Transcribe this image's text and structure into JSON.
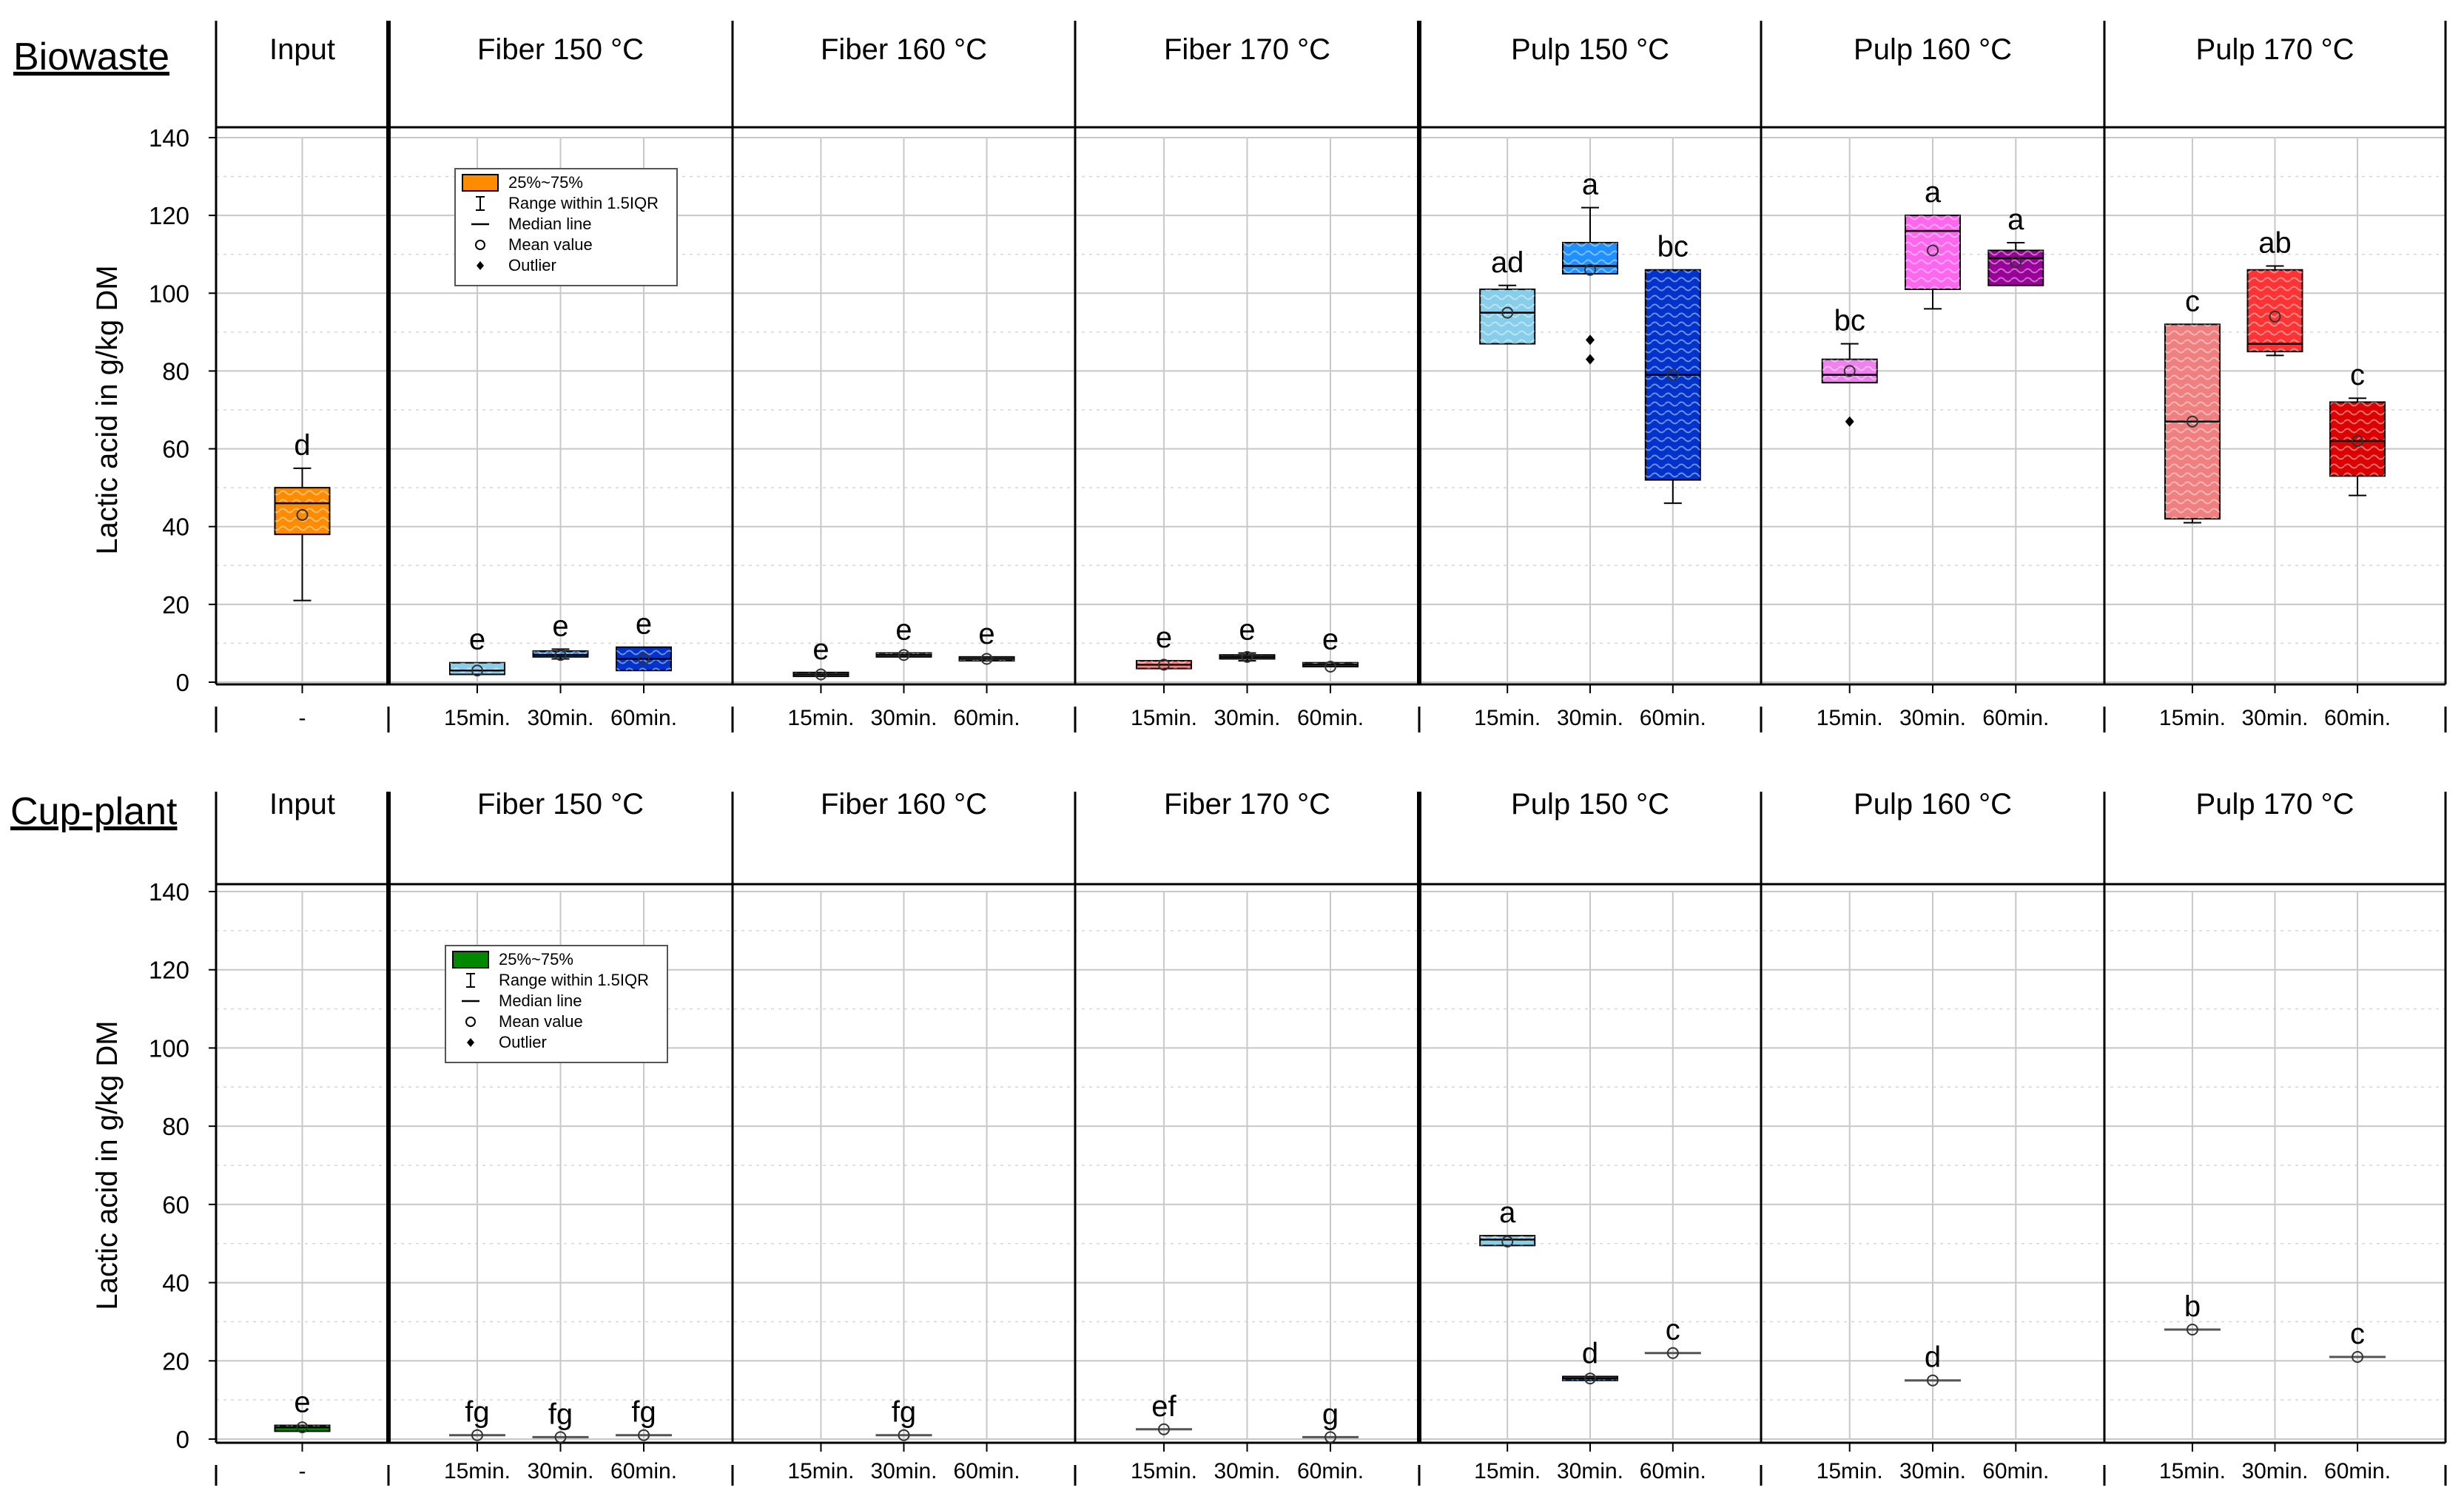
{
  "chart_data": [
    {
      "type": "boxplot",
      "title": "Biowaste",
      "ylabel": "Lactic acid in g/kg DM",
      "ylim": [
        0,
        140
      ],
      "yticks": [
        0,
        20,
        40,
        60,
        80,
        100,
        120,
        140
      ],
      "grid": true,
      "legend": {
        "placement": "inside top-left of Fiber 150 °C panel",
        "entries": [
          "25%~75%",
          "Range within 1.5IQR",
          "Median line",
          "Mean value",
          "Outlier"
        ]
      },
      "groups": [
        {
          "name": "Input",
          "categories": [
            "-"
          ],
          "boxes": [
            {
              "cat": "-",
              "q1": 38,
              "median": 46,
              "q3": 50,
              "low": 21,
              "high": 55,
              "mean": 43,
              "outliers": [],
              "letter": "d",
              "color": "#ff8c00"
            }
          ]
        },
        {
          "name": "Fiber 150 °C",
          "categories": [
            "15min.",
            "30min.",
            "60min."
          ],
          "boxes": [
            {
              "cat": "15min.",
              "q1": 2,
              "median": 3,
              "q3": 5,
              "low": 2,
              "high": 5,
              "mean": 3,
              "outliers": [],
              "letter": "e",
              "color": "#87ceeb"
            },
            {
              "cat": "30min.",
              "q1": 6.5,
              "median": 7,
              "q3": 8,
              "low": 6,
              "high": 8.5,
              "mean": 7,
              "outliers": [],
              "letter": "e",
              "color": "#1e90ff"
            },
            {
              "cat": "60min.",
              "q1": 3,
              "median": 6,
              "q3": 9,
              "low": 3,
              "high": 9,
              "mean": 6,
              "outliers": [],
              "letter": "e",
              "color": "#0033cc"
            }
          ]
        },
        {
          "name": "Fiber 160 °C",
          "categories": [
            "15min.",
            "30min.",
            "60min."
          ],
          "boxes": [
            {
              "cat": "15min.",
              "q1": 1.5,
              "median": 2,
              "q3": 2.5,
              "low": 1.5,
              "high": 2.5,
              "mean": 2,
              "outliers": [],
              "letter": "e",
              "color": "#aaaaaa"
            },
            {
              "cat": "30min.",
              "q1": 6.5,
              "median": 7,
              "q3": 7.5,
              "low": 6.5,
              "high": 7.5,
              "mean": 7,
              "outliers": [],
              "letter": "e",
              "color": "#aaaaaa"
            },
            {
              "cat": "60min.",
              "q1": 5.5,
              "median": 6,
              "q3": 6.5,
              "low": 5.5,
              "high": 6.5,
              "mean": 6,
              "outliers": [],
              "letter": "e",
              "color": "#aaaaaa"
            }
          ]
        },
        {
          "name": "Fiber 170 °C",
          "categories": [
            "15min.",
            "30min.",
            "60min."
          ],
          "boxes": [
            {
              "cat": "15min.",
              "q1": 3.5,
              "median": 4.5,
              "q3": 5.5,
              "low": 3.5,
              "high": 5.5,
              "mean": 4.5,
              "outliers": [],
              "letter": "e",
              "color": "#ff8080"
            },
            {
              "cat": "30min.",
              "q1": 6,
              "median": 6.5,
              "q3": 7,
              "low": 5.5,
              "high": 7.5,
              "mean": 6.5,
              "outliers": [],
              "letter": "e",
              "color": "#888888"
            },
            {
              "cat": "60min.",
              "q1": 4,
              "median": 4.5,
              "q3": 5,
              "low": 4,
              "high": 5,
              "mean": 4,
              "outliers": [],
              "letter": "e",
              "color": "#888888"
            }
          ]
        },
        {
          "name": "Pulp 150 °C",
          "categories": [
            "15min.",
            "30min.",
            "60min."
          ],
          "boxes": [
            {
              "cat": "15min.",
              "q1": 87,
              "median": 95,
              "q3": 101,
              "low": 87,
              "high": 102,
              "mean": 95,
              "outliers": [],
              "letter": "ad",
              "color": "#87ceeb"
            },
            {
              "cat": "30min.",
              "q1": 105,
              "median": 107,
              "q3": 113,
              "low": 105,
              "high": 122,
              "mean": 106,
              "outliers": [
                88,
                83
              ],
              "letter": "a",
              "color": "#1e90ff"
            },
            {
              "cat": "60min.",
              "q1": 52,
              "median": 79,
              "q3": 106,
              "low": 46,
              "high": 106,
              "mean": 79,
              "outliers": [],
              "letter": "bc",
              "color": "#0033cc"
            }
          ]
        },
        {
          "name": "Pulp 160 °C",
          "categories": [
            "15min.",
            "30min.",
            "60min."
          ],
          "boxes": [
            {
              "cat": "15min.",
              "q1": 77,
              "median": 79,
              "q3": 83,
              "low": 77,
              "high": 87,
              "mean": 80,
              "outliers": [
                67
              ],
              "letter": "bc",
              "color": "#ee82ee"
            },
            {
              "cat": "30min.",
              "q1": 101,
              "median": 116,
              "q3": 120,
              "low": 96,
              "high": 120,
              "mean": 111,
              "outliers": [],
              "letter": "a",
              "color": "#ff66ee"
            },
            {
              "cat": "60min.",
              "q1": 102,
              "median": 109,
              "q3": 111,
              "low": 102,
              "high": 113,
              "mean": 108,
              "outliers": [],
              "letter": "a",
              "color": "#990099"
            }
          ]
        },
        {
          "name": "Pulp 170 °C",
          "categories": [
            "15min.",
            "30min.",
            "60min."
          ],
          "boxes": [
            {
              "cat": "15min.",
              "q1": 42,
              "median": 67,
              "q3": 92,
              "low": 41,
              "high": 92,
              "mean": 67,
              "outliers": [],
              "letter": "c",
              "color": "#f08080"
            },
            {
              "cat": "30min.",
              "q1": 85,
              "median": 87,
              "q3": 106,
              "low": 84,
              "high": 107,
              "mean": 94,
              "outliers": [],
              "letter": "ab",
              "color": "#ff3333"
            },
            {
              "cat": "60min.",
              "q1": 53,
              "median": 62,
              "q3": 72,
              "low": 48,
              "high": 73,
              "mean": 62,
              "outliers": [],
              "letter": "c",
              "color": "#dd0000"
            }
          ]
        }
      ]
    },
    {
      "type": "boxplot",
      "title": "Cup-plant",
      "ylabel": "Lactic acid in g/kg DM",
      "ylim": [
        0,
        140
      ],
      "yticks": [
        0,
        20,
        40,
        60,
        80,
        100,
        120,
        140
      ],
      "grid": true,
      "legend": {
        "placement": "inside top-left of Fiber 150 °C panel",
        "entries": [
          "25%~75%",
          "Range within 1.5IQR",
          "Median line",
          "Mean value",
          "Outlier"
        ]
      },
      "groups": [
        {
          "name": "Input",
          "categories": [
            "-"
          ],
          "boxes": [
            {
              "cat": "-",
              "q1": 2,
              "median": 3,
              "q3": 3.5,
              "low": 2,
              "high": 3.5,
              "mean": 3,
              "outliers": [],
              "letter": "e",
              "color": "#008800"
            }
          ]
        },
        {
          "name": "Fiber 150 °C",
          "categories": [
            "15min.",
            "30min.",
            "60min."
          ],
          "boxes": [
            {
              "cat": "15min.",
              "q1": 1,
              "median": 1,
              "q3": 1,
              "low": 1,
              "high": 1,
              "mean": 1,
              "outliers": [],
              "letter": "fg",
              "color": "#555555"
            },
            {
              "cat": "30min.",
              "q1": 0.5,
              "median": 0.5,
              "q3": 0.5,
              "low": 0.5,
              "high": 0.5,
              "mean": 0.5,
              "outliers": [],
              "letter": "fg",
              "color": "#555555"
            },
            {
              "cat": "60min.",
              "q1": 1,
              "median": 1,
              "q3": 1,
              "low": 1,
              "high": 1,
              "mean": 1,
              "outliers": [],
              "letter": "fg",
              "color": "#555555"
            }
          ]
        },
        {
          "name": "Fiber 160 °C",
          "categories": [
            "15min.",
            "30min.",
            "60min."
          ],
          "boxes": [
            {
              "cat": "30min.",
              "q1": 1,
              "median": 1,
              "q3": 1,
              "low": 1,
              "high": 1,
              "mean": 1,
              "outliers": [],
              "letter": "fg",
              "color": "#555555"
            }
          ]
        },
        {
          "name": "Fiber 170 °C",
          "categories": [
            "15min.",
            "30min.",
            "60min."
          ],
          "boxes": [
            {
              "cat": "15min.",
              "q1": 2.5,
              "median": 2.5,
              "q3": 2.5,
              "low": 2.5,
              "high": 2.5,
              "mean": 2.5,
              "outliers": [],
              "letter": "ef",
              "color": "#555555"
            },
            {
              "cat": "60min.",
              "q1": 0.5,
              "median": 0.5,
              "q3": 0.5,
              "low": 0.5,
              "high": 0.5,
              "mean": 0.5,
              "outliers": [],
              "letter": "g",
              "color": "#555555"
            }
          ]
        },
        {
          "name": "Pulp 150 °C",
          "categories": [
            "15min.",
            "30min.",
            "60min."
          ],
          "boxes": [
            {
              "cat": "15min.",
              "q1": 49.5,
              "median": 51,
              "q3": 52,
              "low": 49.5,
              "high": 52,
              "mean": 50.5,
              "outliers": [],
              "letter": "a",
              "color": "#87ceeb"
            },
            {
              "cat": "30min.",
              "q1": 15,
              "median": 15.5,
              "q3": 16,
              "low": 15,
              "high": 16,
              "mean": 15.5,
              "outliers": [],
              "letter": "d",
              "color": "#1e90ff"
            },
            {
              "cat": "60min.",
              "q1": 22,
              "median": 22,
              "q3": 22,
              "low": 22,
              "high": 22,
              "mean": 22,
              "outliers": [],
              "letter": "c",
              "color": "#555555"
            }
          ]
        },
        {
          "name": "Pulp 160 °C",
          "categories": [
            "15min.",
            "30min.",
            "60min."
          ],
          "boxes": [
            {
              "cat": "30min.",
              "q1": 15,
              "median": 15,
              "q3": 15,
              "low": 15,
              "high": 15,
              "mean": 15,
              "outliers": [],
              "letter": "d",
              "color": "#555555"
            }
          ]
        },
        {
          "name": "Pulp 170 °C",
          "categories": [
            "15min.",
            "30min.",
            "60min."
          ],
          "boxes": [
            {
              "cat": "15min.",
              "q1": 28,
              "median": 28,
              "q3": 28,
              "low": 28,
              "high": 28,
              "mean": 28,
              "outliers": [],
              "letter": "b",
              "color": "#555555"
            },
            {
              "cat": "60min.",
              "q1": 21,
              "median": 21,
              "q3": 21,
              "low": 21,
              "high": 21,
              "mean": 21,
              "outliers": [],
              "letter": "c",
              "color": "#555555"
            }
          ]
        }
      ]
    }
  ]
}
